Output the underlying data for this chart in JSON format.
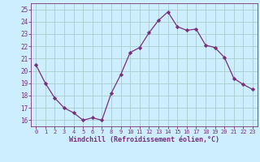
{
  "x": [
    0,
    1,
    2,
    3,
    4,
    5,
    6,
    7,
    8,
    9,
    10,
    11,
    12,
    13,
    14,
    15,
    16,
    17,
    18,
    19,
    20,
    21,
    22,
    23
  ],
  "y": [
    20.5,
    19.0,
    17.8,
    17.0,
    16.6,
    16.0,
    16.2,
    16.0,
    18.2,
    19.7,
    21.5,
    21.9,
    23.1,
    24.1,
    24.8,
    23.6,
    23.3,
    23.4,
    22.1,
    21.9,
    21.1,
    19.4,
    18.9,
    18.5
  ],
  "line_color": "#7b2f7b",
  "marker": "D",
  "marker_size": 2.2,
  "bg_color": "#cceeff",
  "grid_color": "#aacccc",
  "xlabel": "Windchill (Refroidissement éolien,°C)",
  "xlabel_color": "#7b2f7b",
  "tick_color": "#7b2f7b",
  "ylim": [
    15.5,
    25.5
  ],
  "xlim": [
    -0.5,
    23.5
  ],
  "yticks": [
    16,
    17,
    18,
    19,
    20,
    21,
    22,
    23,
    24,
    25
  ],
  "xticks": [
    0,
    1,
    2,
    3,
    4,
    5,
    6,
    7,
    8,
    9,
    10,
    11,
    12,
    13,
    14,
    15,
    16,
    17,
    18,
    19,
    20,
    21,
    22,
    23
  ]
}
